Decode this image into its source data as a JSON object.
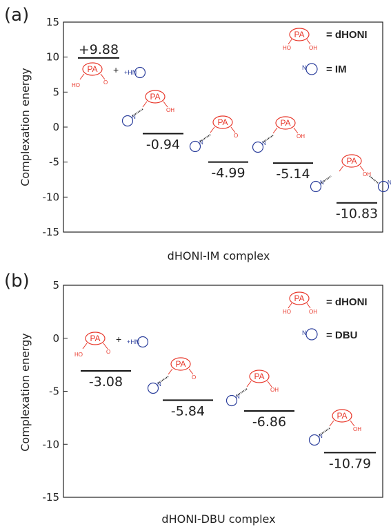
{
  "colors": {
    "acid": "#e8372a",
    "base": "#2c3f9c",
    "axis": "#222222"
  },
  "legend": {
    "acid_abbrev": "PA",
    "acid_ho": "HO",
    "acid_oh": "OH",
    "acid_label": "= dHONI",
    "base_n": "N"
  },
  "chart_data": [
    {
      "type": "energy-level diagram",
      "panel": "(a)",
      "title": "dHONI-IM complex",
      "ylabel": "Complexation energy",
      "ylim": [
        -15,
        15
      ],
      "yticks": [
        "15",
        "10",
        "5",
        "0",
        "-5",
        "-10",
        "-15"
      ],
      "base_legend_label": "= IM",
      "separated_pair_plus": "+",
      "cation_label": "+HN",
      "levels": [
        {
          "value": 9.88,
          "label": "+9.88"
        },
        {
          "value": -0.94,
          "label": "-0.94"
        },
        {
          "value": -4.99,
          "label": "-4.99"
        },
        {
          "value": -5.14,
          "label": "-5.14"
        },
        {
          "value": -10.83,
          "label": "-10.83"
        }
      ]
    },
    {
      "type": "energy-level diagram",
      "panel": "(b)",
      "title": "dHONI-DBU complex",
      "ylabel": "Complexation energy",
      "ylim": [
        -15,
        5
      ],
      "yticks": [
        "5",
        "0",
        "-5",
        "-10",
        "-15"
      ],
      "base_legend_label": "= DBU",
      "separated_pair_plus": "+",
      "cation_label": "+HN",
      "levels": [
        {
          "value": -3.08,
          "label": "-3.08"
        },
        {
          "value": -5.84,
          "label": "-5.84"
        },
        {
          "value": -6.86,
          "label": "-6.86"
        },
        {
          "value": -10.79,
          "label": "-10.79"
        }
      ]
    }
  ]
}
